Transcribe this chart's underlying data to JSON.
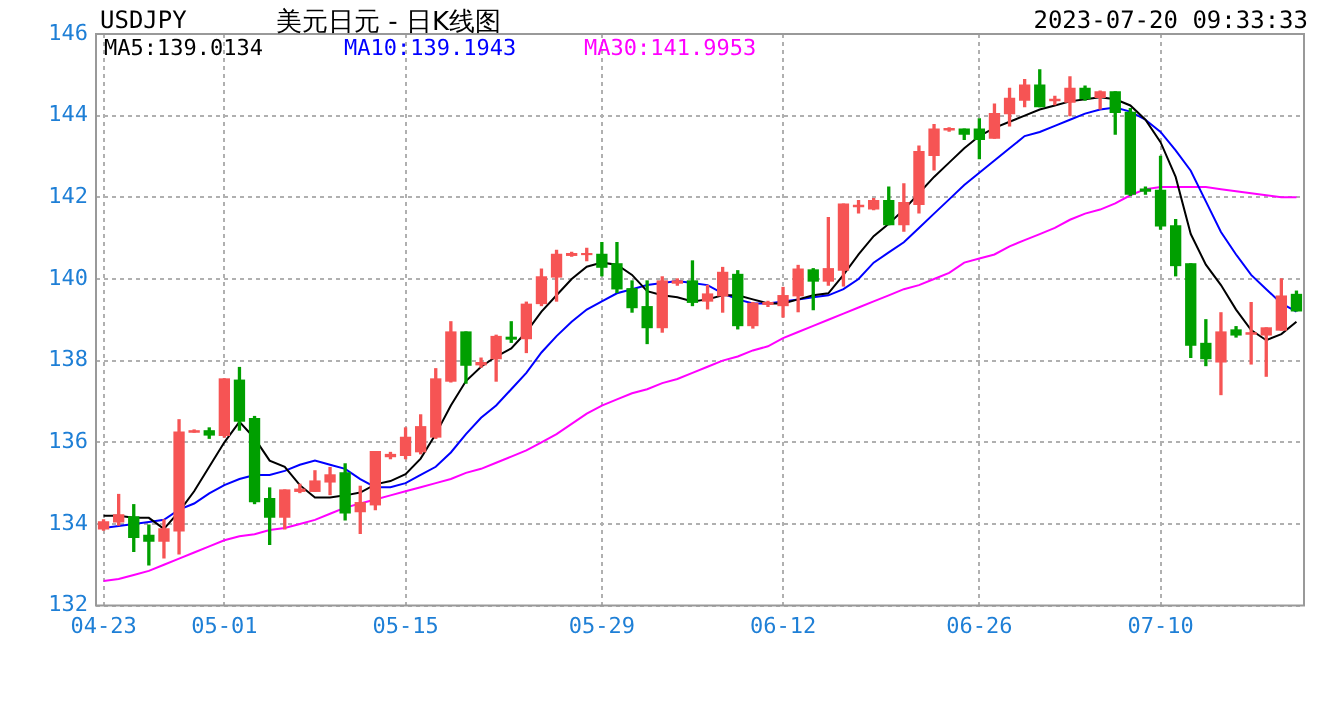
{
  "chart_data": {
    "type": "candlestick",
    "title": "美元日元 - 日K线图",
    "subtitle": "USDJPY",
    "annotations": [
      "2023-07-20 09:33:33"
    ],
    "categories": [
      "04-23",
      null,
      null,
      null,
      null,
      null,
      null,
      null,
      "05-01",
      null,
      null,
      null,
      null,
      null,
      null,
      null,
      null,
      null,
      null,
      null,
      "05-15",
      null,
      null,
      null,
      null,
      null,
      null,
      null,
      null,
      null,
      null,
      null,
      null,
      "05-29",
      null,
      null,
      null,
      null,
      null,
      null,
      null,
      null,
      null,
      null,
      null,
      "06-12",
      null,
      null,
      null,
      null,
      null,
      null,
      null,
      null,
      null,
      null,
      null,
      null,
      "06-26",
      null,
      null,
      null,
      null,
      null,
      null,
      null,
      null,
      null,
      null,
      null,
      "07-10",
      null,
      null,
      null,
      null,
      null,
      null,
      null,
      null,
      null
    ],
    "ohlc": [
      [
        133.88,
        134.1,
        133.85,
        134.05
      ],
      [
        134.05,
        134.72,
        133.97,
        134.22
      ],
      [
        134.17,
        134.47,
        133.33,
        133.67
      ],
      [
        133.72,
        133.97,
        133.0,
        133.58
      ],
      [
        133.58,
        134.1,
        133.17,
        133.88
      ],
      [
        133.83,
        136.55,
        133.27,
        136.25
      ],
      [
        136.25,
        136.3,
        136.25,
        136.28
      ],
      [
        136.28,
        136.35,
        136.1,
        136.18
      ],
      [
        136.17,
        137.55,
        136.13,
        137.55
      ],
      [
        137.52,
        137.83,
        136.3,
        136.52
      ],
      [
        136.58,
        136.63,
        134.5,
        134.55
      ],
      [
        134.62,
        134.88,
        133.5,
        134.17
      ],
      [
        134.17,
        134.83,
        133.88,
        134.83
      ],
      [
        134.8,
        134.97,
        134.77,
        134.85
      ],
      [
        134.8,
        135.3,
        134.8,
        135.05
      ],
      [
        135.03,
        135.38,
        134.72,
        135.2
      ],
      [
        135.25,
        135.47,
        134.1,
        134.27
      ],
      [
        134.3,
        134.92,
        133.77,
        134.52
      ],
      [
        134.47,
        135.77,
        134.35,
        135.77
      ],
      [
        135.65,
        135.75,
        135.6,
        135.7
      ],
      [
        135.68,
        136.35,
        135.6,
        136.12
      ],
      [
        135.77,
        136.67,
        135.72,
        136.38
      ],
      [
        136.13,
        137.8,
        136.1,
        137.55
      ],
      [
        137.5,
        138.95,
        137.48,
        138.7
      ],
      [
        138.7,
        138.7,
        137.45,
        137.89
      ],
      [
        137.9,
        138.06,
        137.84,
        137.95
      ],
      [
        138.05,
        138.62,
        137.5,
        138.59
      ],
      [
        138.57,
        138.95,
        138.45,
        138.53
      ],
      [
        138.54,
        139.43,
        138.2,
        139.38
      ],
      [
        139.4,
        140.24,
        139.35,
        140.05
      ],
      [
        140.05,
        140.7,
        139.46,
        140.6
      ],
      [
        140.58,
        140.65,
        140.56,
        140.62
      ],
      [
        140.6,
        140.75,
        140.45,
        140.62
      ],
      [
        140.6,
        140.89,
        140.08,
        140.29
      ],
      [
        140.37,
        140.89,
        139.67,
        139.76
      ],
      [
        139.76,
        139.95,
        139.19,
        139.3
      ],
      [
        139.32,
        139.95,
        138.42,
        138.81
      ],
      [
        138.81,
        140.05,
        138.7,
        139.95
      ],
      [
        139.9,
        140.0,
        139.85,
        139.95
      ],
      [
        139.95,
        140.44,
        139.35,
        139.43
      ],
      [
        139.46,
        139.84,
        139.27,
        139.63
      ],
      [
        139.59,
        140.28,
        139.19,
        140.16
      ],
      [
        140.11,
        140.2,
        138.78,
        138.86
      ],
      [
        138.86,
        139.42,
        138.8,
        139.4
      ],
      [
        139.38,
        139.45,
        139.33,
        139.42
      ],
      [
        139.35,
        139.79,
        139.07,
        139.59
      ],
      [
        139.59,
        140.33,
        139.2,
        140.24
      ],
      [
        140.22,
        140.25,
        139.25,
        139.95
      ],
      [
        139.95,
        141.5,
        139.85,
        140.25
      ],
      [
        140.22,
        141.83,
        139.83,
        141.83
      ],
      [
        141.77,
        141.92,
        141.62,
        141.8
      ],
      [
        141.72,
        141.97,
        141.7,
        141.92
      ],
      [
        141.92,
        142.25,
        141.33,
        141.33
      ],
      [
        141.33,
        142.33,
        141.17,
        141.87
      ],
      [
        141.83,
        143.25,
        141.62,
        143.12
      ],
      [
        143.03,
        143.78,
        142.67,
        143.67
      ],
      [
        143.65,
        143.7,
        143.62,
        143.68
      ],
      [
        143.67,
        143.67,
        143.42,
        143.55
      ],
      [
        143.67,
        143.92,
        142.95,
        143.42
      ],
      [
        143.45,
        144.28,
        143.45,
        144.05
      ],
      [
        144.05,
        144.67,
        143.75,
        144.42
      ],
      [
        144.38,
        144.88,
        144.22,
        144.75
      ],
      [
        144.75,
        145.12,
        144.22,
        144.22
      ],
      [
        144.37,
        144.47,
        144.27,
        144.4
      ],
      [
        144.33,
        144.95,
        144.0,
        144.67
      ],
      [
        144.67,
        144.72,
        144.38,
        144.42
      ],
      [
        144.45,
        144.6,
        144.17,
        144.58
      ],
      [
        144.58,
        144.58,
        143.55,
        144.08
      ],
      [
        144.08,
        144.17,
        142.05,
        142.08
      ],
      [
        142.2,
        142.25,
        142.08,
        142.15
      ],
      [
        142.17,
        143.0,
        141.22,
        141.3
      ],
      [
        141.3,
        141.45,
        140.08,
        140.33
      ],
      [
        140.37,
        140.37,
        138.08,
        138.38
      ],
      [
        138.42,
        139.0,
        137.88,
        138.05
      ],
      [
        137.97,
        139.17,
        137.17,
        138.7
      ],
      [
        138.75,
        138.83,
        138.58,
        138.63
      ],
      [
        138.65,
        139.42,
        137.92,
        138.68
      ],
      [
        138.63,
        138.8,
        137.62,
        138.8
      ],
      [
        138.75,
        140.0,
        138.75,
        139.58
      ],
      [
        139.62,
        139.7,
        139.22,
        139.22
      ]
    ],
    "colors": [
      "#f65454",
      "#f65454",
      "#009f00",
      "#009f00",
      "#f65454",
      "#f65454",
      "#f65454",
      "#009f00",
      "#f65454",
      "#009f00",
      "#009f00",
      "#009f00",
      "#f65454",
      "#f65454",
      "#f65454",
      "#f65454",
      "#009f00",
      "#f65454",
      "#f65454",
      "#f65454",
      "#f65454",
      "#f65454",
      "#f65454",
      "#f65454",
      "#009f00",
      "#f65454",
      "#f65454",
      "#009f00",
      "#f65454",
      "#f65454",
      "#f65454",
      "#f65454",
      "#f65454",
      "#009f00",
      "#009f00",
      "#009f00",
      "#009f00",
      "#f65454",
      "#f65454",
      "#009f00",
      "#f65454",
      "#f65454",
      "#009f00",
      "#f65454",
      "#f65454",
      "#f65454",
      "#f65454",
      "#009f00",
      "#f65454",
      "#f65454",
      "#f65454",
      "#f65454",
      "#009f00",
      "#f65454",
      "#f65454",
      "#f65454",
      "#f65454",
      "#009f00",
      "#009f00",
      "#f65454",
      "#f65454",
      "#f65454",
      "#009f00",
      "#f65454",
      "#f65454",
      "#009f00",
      "#f65454",
      "#009f00",
      "#009f00",
      "#009f00",
      "#009f00",
      "#009f00",
      "#009f00",
      "#009f00",
      "#f65454",
      "#009f00",
      "#f65454",
      "#f65454",
      "#f65454",
      "#009f00"
    ],
    "series": [
      {
        "type": "line",
        "name": "MA5:139.0134",
        "color": "#000000",
        "values": [
          134.2,
          134.2,
          134.15,
          134.15,
          133.88,
          134.3,
          134.8,
          135.4,
          136.0,
          136.5,
          136.1,
          135.55,
          135.4,
          134.95,
          134.65,
          134.65,
          134.7,
          134.77,
          134.97,
          135.05,
          135.22,
          135.6,
          136.2,
          136.9,
          137.5,
          137.85,
          138.1,
          138.3,
          138.7,
          139.2,
          139.6,
          140.0,
          140.3,
          140.4,
          140.35,
          140.1,
          139.7,
          139.6,
          139.55,
          139.45,
          139.5,
          139.6,
          139.6,
          139.5,
          139.4,
          139.4,
          139.5,
          139.6,
          139.65,
          140.1,
          140.6,
          141.05,
          141.35,
          141.7,
          142.1,
          142.5,
          142.85,
          143.2,
          143.5,
          143.7,
          143.85,
          144.0,
          144.15,
          144.25,
          144.35,
          144.4,
          144.45,
          144.4,
          144.25,
          143.9,
          143.35,
          142.5,
          141.1,
          140.35,
          139.85,
          139.25,
          138.75,
          138.5,
          138.65,
          138.95
        ]
      },
      {
        "type": "line",
        "name": "MA10:139.1943",
        "color": "#0000ff",
        "values": [
          133.9,
          133.95,
          134.0,
          134.05,
          134.1,
          134.35,
          134.5,
          134.75,
          134.95,
          135.1,
          135.2,
          135.2,
          135.3,
          135.45,
          135.55,
          135.45,
          135.35,
          135.1,
          134.9,
          134.9,
          135.0,
          135.2,
          135.4,
          135.75,
          136.2,
          136.6,
          136.9,
          137.3,
          137.7,
          138.2,
          138.6,
          138.95,
          139.25,
          139.45,
          139.65,
          139.75,
          139.85,
          139.9,
          139.95,
          139.9,
          139.85,
          139.65,
          139.5,
          139.4,
          139.4,
          139.45,
          139.5,
          139.55,
          139.6,
          139.75,
          140.0,
          140.4,
          140.65,
          140.9,
          141.25,
          141.6,
          141.95,
          142.3,
          142.6,
          142.9,
          143.2,
          143.5,
          143.6,
          143.75,
          143.9,
          144.05,
          144.15,
          144.2,
          144.1,
          143.9,
          143.6,
          143.15,
          142.65,
          141.9,
          141.15,
          140.6,
          140.1,
          139.75,
          139.4,
          139.2
        ]
      },
      {
        "type": "line",
        "name": "MA30:141.9953",
        "color": "#ff00ff",
        "values": [
          132.6,
          132.65,
          132.75,
          132.85,
          133.0,
          133.15,
          133.3,
          133.45,
          133.6,
          133.7,
          133.75,
          133.85,
          133.9,
          134.0,
          134.1,
          134.25,
          134.4,
          134.5,
          134.6,
          134.7,
          134.8,
          134.9,
          135.0,
          135.1,
          135.25,
          135.35,
          135.5,
          135.65,
          135.8,
          136.0,
          136.2,
          136.45,
          136.7,
          136.9,
          137.05,
          137.2,
          137.3,
          137.45,
          137.55,
          137.7,
          137.85,
          138.0,
          138.1,
          138.25,
          138.35,
          138.55,
          138.7,
          138.85,
          139.0,
          139.15,
          139.3,
          139.45,
          139.6,
          139.75,
          139.85,
          140.0,
          140.15,
          140.4,
          140.5,
          140.6,
          140.8,
          140.95,
          141.1,
          141.25,
          141.45,
          141.6,
          141.7,
          141.85,
          142.05,
          142.2,
          142.25,
          142.25,
          142.25,
          142.25,
          142.2,
          142.15,
          142.1,
          142.05,
          142.0,
          142.0
        ]
      }
    ],
    "ylim": [
      132,
      146
    ],
    "yticks": [
      132,
      134,
      136,
      138,
      140,
      142,
      144,
      146
    ],
    "grid": true,
    "legend": "top left"
  }
}
